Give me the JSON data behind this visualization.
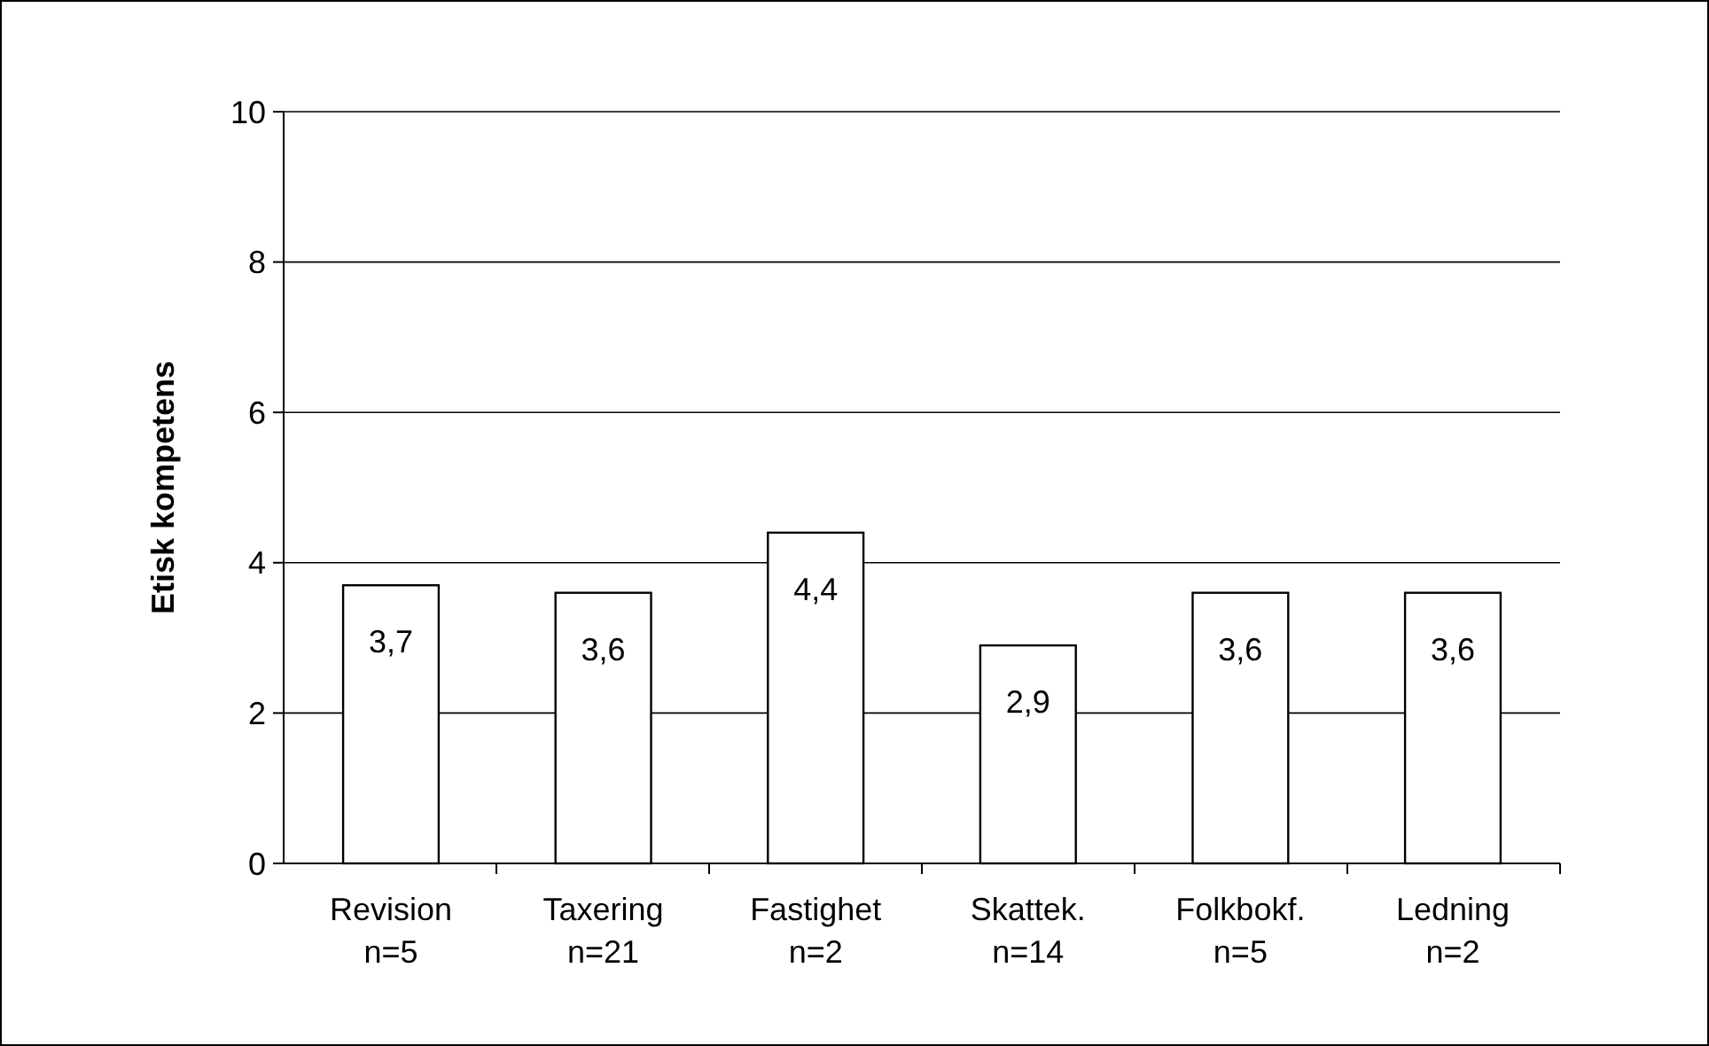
{
  "chart_data": {
    "type": "bar",
    "ylabel": "Etisk kompetens",
    "categories": [
      "Revision\nn=5",
      "Taxering\nn=21",
      "Fastighet\nn=2",
      "Skattek.\nn=14",
      "Folkbokf.\nn=5",
      "Ledning\nn=2"
    ],
    "values": [
      3.7,
      3.6,
      4.4,
      2.9,
      3.6,
      3.6
    ],
    "value_labels": [
      "3,7",
      "3,6",
      "4,4",
      "2,9",
      "3,6",
      "3,6"
    ],
    "color": "#ffffff",
    "ylim": [
      0,
      10
    ],
    "yticks": [
      0,
      2,
      4,
      6,
      8,
      10
    ],
    "grid": "y"
  }
}
